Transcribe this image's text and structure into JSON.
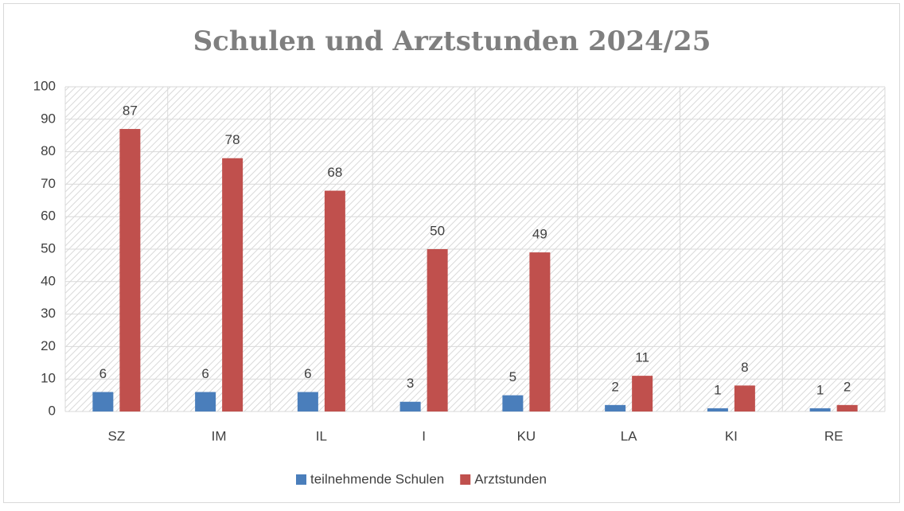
{
  "chart_data": {
    "type": "bar",
    "title": "Schulen und Arztstunden 2024/25",
    "categories": [
      "SZ",
      "IM",
      "IL",
      "I",
      "KU",
      "LA",
      "KI",
      "RE"
    ],
    "series": [
      {
        "name": "teilnehmende Schulen",
        "color": "#4a7ebb",
        "values": [
          6,
          6,
          6,
          3,
          5,
          2,
          1,
          1
        ]
      },
      {
        "name": "Arztstunden",
        "color": "#c0504d",
        "values": [
          87,
          78,
          68,
          50,
          49,
          11,
          8,
          2
        ]
      }
    ],
    "ylim": [
      0,
      100
    ],
    "yticks": [
      0,
      10,
      20,
      30,
      40,
      50,
      60,
      70,
      80,
      90,
      100
    ],
    "grid": true,
    "legend": "bottom"
  }
}
